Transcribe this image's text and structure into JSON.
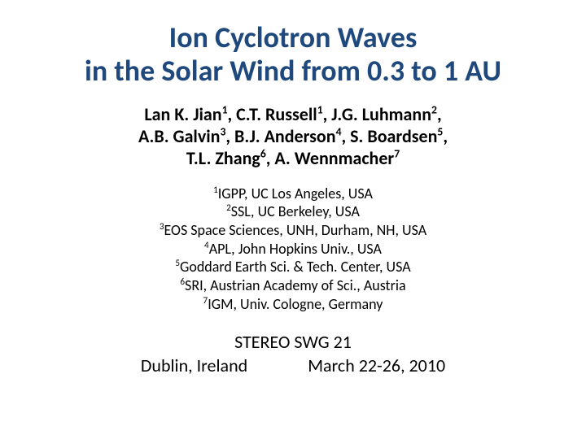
{
  "title": {
    "line1": "Ion Cyclotron Waves",
    "line2": "in the Solar Wind from 0.3 to 1 AU",
    "color": "#1f497d",
    "fontsize": 36,
    "fontweight": 600
  },
  "authors": {
    "items": [
      {
        "name": "Lan K. Jian",
        "sup": "1"
      },
      {
        "name": "C.T. Russell",
        "sup": "1"
      },
      {
        "name": "J.G. Luhmann",
        "sup": "2"
      },
      {
        "name": "A.B. Galvin",
        "sup": "3"
      },
      {
        "name": "B.J. Anderson",
        "sup": "4"
      },
      {
        "name": "S. Boardsen",
        "sup": "5"
      },
      {
        "name": "T.L. Zhang",
        "sup": "6"
      },
      {
        "name": "A. Wennmacher",
        "sup": "7"
      }
    ],
    "color": "#000000",
    "fontsize": 22,
    "fontweight": 600
  },
  "affiliations": {
    "items": [
      {
        "sup": "1",
        "text": "IGPP, UC Los Angeles, USA"
      },
      {
        "sup": "2",
        "text": "SSL, UC Berkeley, USA"
      },
      {
        "sup": "3",
        "text": "EOS Space Sciences, UNH, Durham, NH, USA"
      },
      {
        "sup": "4",
        "text": "APL, John Hopkins Univ., USA"
      },
      {
        "sup": "5",
        "text": "Goddard Earth Sci. & Tech. Center, USA"
      },
      {
        "sup": "6",
        "text": "SRI, Austrian Academy of Sci., Austria"
      },
      {
        "sup": "7",
        "text": "IGM, Univ. Cologne, Germany"
      }
    ],
    "color": "#000000",
    "fontsize": 18,
    "fontweight": 400
  },
  "meeting": {
    "name": "STEREO SWG 21",
    "location": "Dublin, Ireland",
    "date": "March 22-26, 2010",
    "color": "#000000",
    "fontsize": 22,
    "fontweight": 400
  },
  "background_color": "#ffffff",
  "font_family": "Calibri"
}
